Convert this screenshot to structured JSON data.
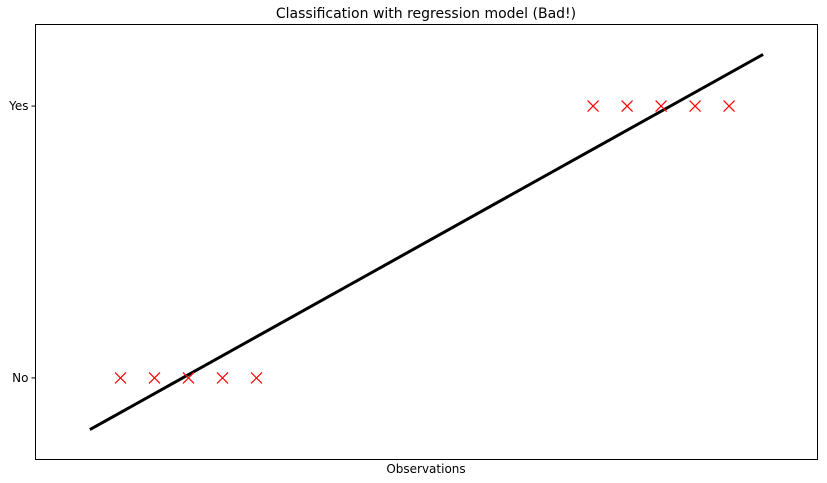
{
  "chart_data": {
    "type": "scatter",
    "title": "Classification with regression model (Bad!)",
    "xlabel": "Observations",
    "ylabel": "",
    "xlim": [
      0,
      23
    ],
    "ylim": [
      -0.3,
      1.3
    ],
    "grid": false,
    "y_ticks": [
      {
        "value": 0,
        "label": "No"
      },
      {
        "value": 1,
        "label": "Yes"
      }
    ],
    "x_ticks": [],
    "series": [
      {
        "kind": "scatter",
        "marker": "x",
        "color": "#ff0000",
        "points": [
          {
            "x": 2.5,
            "y": 0
          },
          {
            "x": 3.5,
            "y": 0
          },
          {
            "x": 4.5,
            "y": 0
          },
          {
            "x": 5.5,
            "y": 0
          },
          {
            "x": 6.5,
            "y": 0
          },
          {
            "x": 16.4,
            "y": 1
          },
          {
            "x": 17.4,
            "y": 1
          },
          {
            "x": 18.4,
            "y": 1
          },
          {
            "x": 19.4,
            "y": 1
          },
          {
            "x": 20.4,
            "y": 1
          }
        ]
      },
      {
        "kind": "line",
        "color": "#000000",
        "points": [
          {
            "x": 1.6,
            "y": -0.19
          },
          {
            "x": 21.4,
            "y": 1.19
          }
        ]
      }
    ]
  }
}
